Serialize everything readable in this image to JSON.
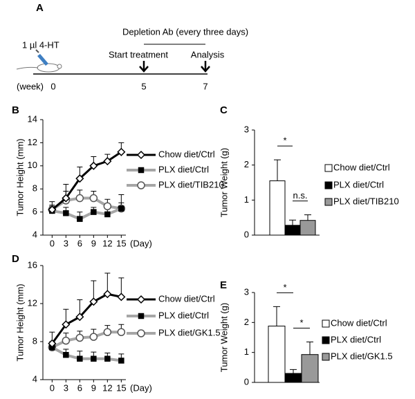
{
  "timeline": {
    "label": "A",
    "injection": "1 µl 4-HT",
    "treatment_period": "Depletion Ab (every three days)",
    "events": [
      "Start treatment",
      "Analysis"
    ],
    "axis_label": "(week)",
    "ticks": [
      "0",
      "5",
      "7"
    ]
  },
  "chart_data": [
    {
      "type": "line",
      "label": "B",
      "ylabel": "Tumor Height (mm)",
      "xlabel": "(Day)",
      "x": [
        0,
        3,
        6,
        9,
        12,
        15
      ],
      "xticks": [
        0,
        3,
        6,
        9,
        12,
        15
      ],
      "xlim": [
        -2,
        16
      ],
      "ylim": [
        4,
        14
      ],
      "yticks": [
        4,
        6,
        8,
        10,
        12,
        14
      ],
      "series": [
        {
          "name": "Chow diet/Ctrl",
          "color": "#000000",
          "marker": "diamond",
          "marker_color": "#ffffff",
          "values": [
            6.2,
            7.2,
            8.9,
            10.0,
            10.4,
            11.2
          ],
          "errors": [
            0.4,
            1.2,
            1.0,
            0.8,
            0.6,
            0.8
          ]
        },
        {
          "name": "PLX diet/Ctrl",
          "color": "#a6a6a6",
          "marker": "square",
          "marker_color": "#000000",
          "values": [
            6.1,
            5.9,
            5.4,
            6.0,
            5.8,
            6.3
          ],
          "errors": [
            0.4,
            0.5,
            0.6,
            0.4,
            0.5,
            0.5
          ]
        },
        {
          "name": "PLX diet/TIB210",
          "color": "#a6a6a6",
          "marker": "circle",
          "marker_color": "#ffffff",
          "values": [
            6.2,
            7.0,
            7.2,
            7.2,
            6.5,
            6.3
          ],
          "errors": [
            0.7,
            0.8,
            0.7,
            0.6,
            0.6,
            1.2
          ]
        }
      ]
    },
    {
      "type": "bar",
      "label": "C",
      "ylabel": "Tumor Weight (g)",
      "ylim": [
        0,
        3
      ],
      "yticks": [
        0,
        1,
        2,
        3
      ],
      "series": [
        {
          "name": "Chow diet/Ctrl",
          "color": "#ffffff",
          "values": [
            1.55
          ],
          "errors": [
            0.6
          ]
        },
        {
          "name": "PLX diet/Ctrl",
          "color": "#000000",
          "values": [
            0.28
          ],
          "errors": [
            0.15
          ]
        },
        {
          "name": "PLX diet/TIB210",
          "color": "#999999",
          "values": [
            0.42
          ],
          "errors": [
            0.16
          ]
        }
      ],
      "annotations": [
        {
          "text": "*",
          "between": [
            "Chow diet/Ctrl",
            "PLX diet/Ctrl"
          ]
        },
        {
          "text": "n.s.",
          "between": [
            "PLX diet/Ctrl",
            "PLX diet/TIB210"
          ]
        }
      ]
    },
    {
      "type": "line",
      "label": "D",
      "ylabel": "Tumor Height (mm)",
      "xlabel": "(Day)",
      "x": [
        0,
        3,
        6,
        9,
        12,
        15
      ],
      "xticks": [
        0,
        3,
        6,
        9,
        12,
        15
      ],
      "xlim": [
        -2,
        16
      ],
      "ylim": [
        4,
        16
      ],
      "yticks": [
        4,
        8,
        12,
        16
      ],
      "series": [
        {
          "name": "Chow diet/Ctrl",
          "color": "#000000",
          "marker": "diamond",
          "marker_color": "#ffffff",
          "values": [
            7.8,
            9.8,
            10.6,
            12.2,
            13.0,
            12.7
          ],
          "errors": [
            1.2,
            1.6,
            1.8,
            2.2,
            2.2,
            2.0
          ]
        },
        {
          "name": "PLX diet/Ctrl",
          "color": "#a6a6a6",
          "marker": "square",
          "marker_color": "#000000",
          "values": [
            7.4,
            6.6,
            6.2,
            6.2,
            6.2,
            6.0
          ],
          "errors": [
            0.5,
            0.6,
            0.8,
            0.7,
            0.6,
            0.7
          ]
        },
        {
          "name": "PLX diet/GK1.5",
          "color": "#a6a6a6",
          "marker": "circle",
          "marker_color": "#ffffff",
          "values": [
            7.4,
            8.1,
            8.4,
            8.5,
            9.0,
            9.0
          ],
          "errors": [
            0.6,
            0.8,
            0.7,
            0.8,
            0.7,
            0.8
          ]
        }
      ]
    },
    {
      "type": "bar",
      "label": "E",
      "ylabel": "Tumor Weight (g)",
      "ylim": [
        0,
        3
      ],
      "yticks": [
        0,
        1,
        2,
        3
      ],
      "series": [
        {
          "name": "Chow diet/Ctrl",
          "color": "#ffffff",
          "values": [
            1.88
          ],
          "errors": [
            0.65
          ]
        },
        {
          "name": "PLX diet/Ctrl",
          "color": "#000000",
          "values": [
            0.3
          ],
          "errors": [
            0.13
          ]
        },
        {
          "name": "PLX diet/GK1.5",
          "color": "#999999",
          "values": [
            0.93
          ],
          "errors": [
            0.42
          ]
        }
      ],
      "annotations": [
        {
          "text": "*",
          "between": [
            "Chow diet/Ctrl",
            "PLX diet/Ctrl"
          ]
        },
        {
          "text": "*",
          "between": [
            "PLX diet/Ctrl",
            "PLX diet/GK1.5"
          ]
        }
      ]
    }
  ]
}
